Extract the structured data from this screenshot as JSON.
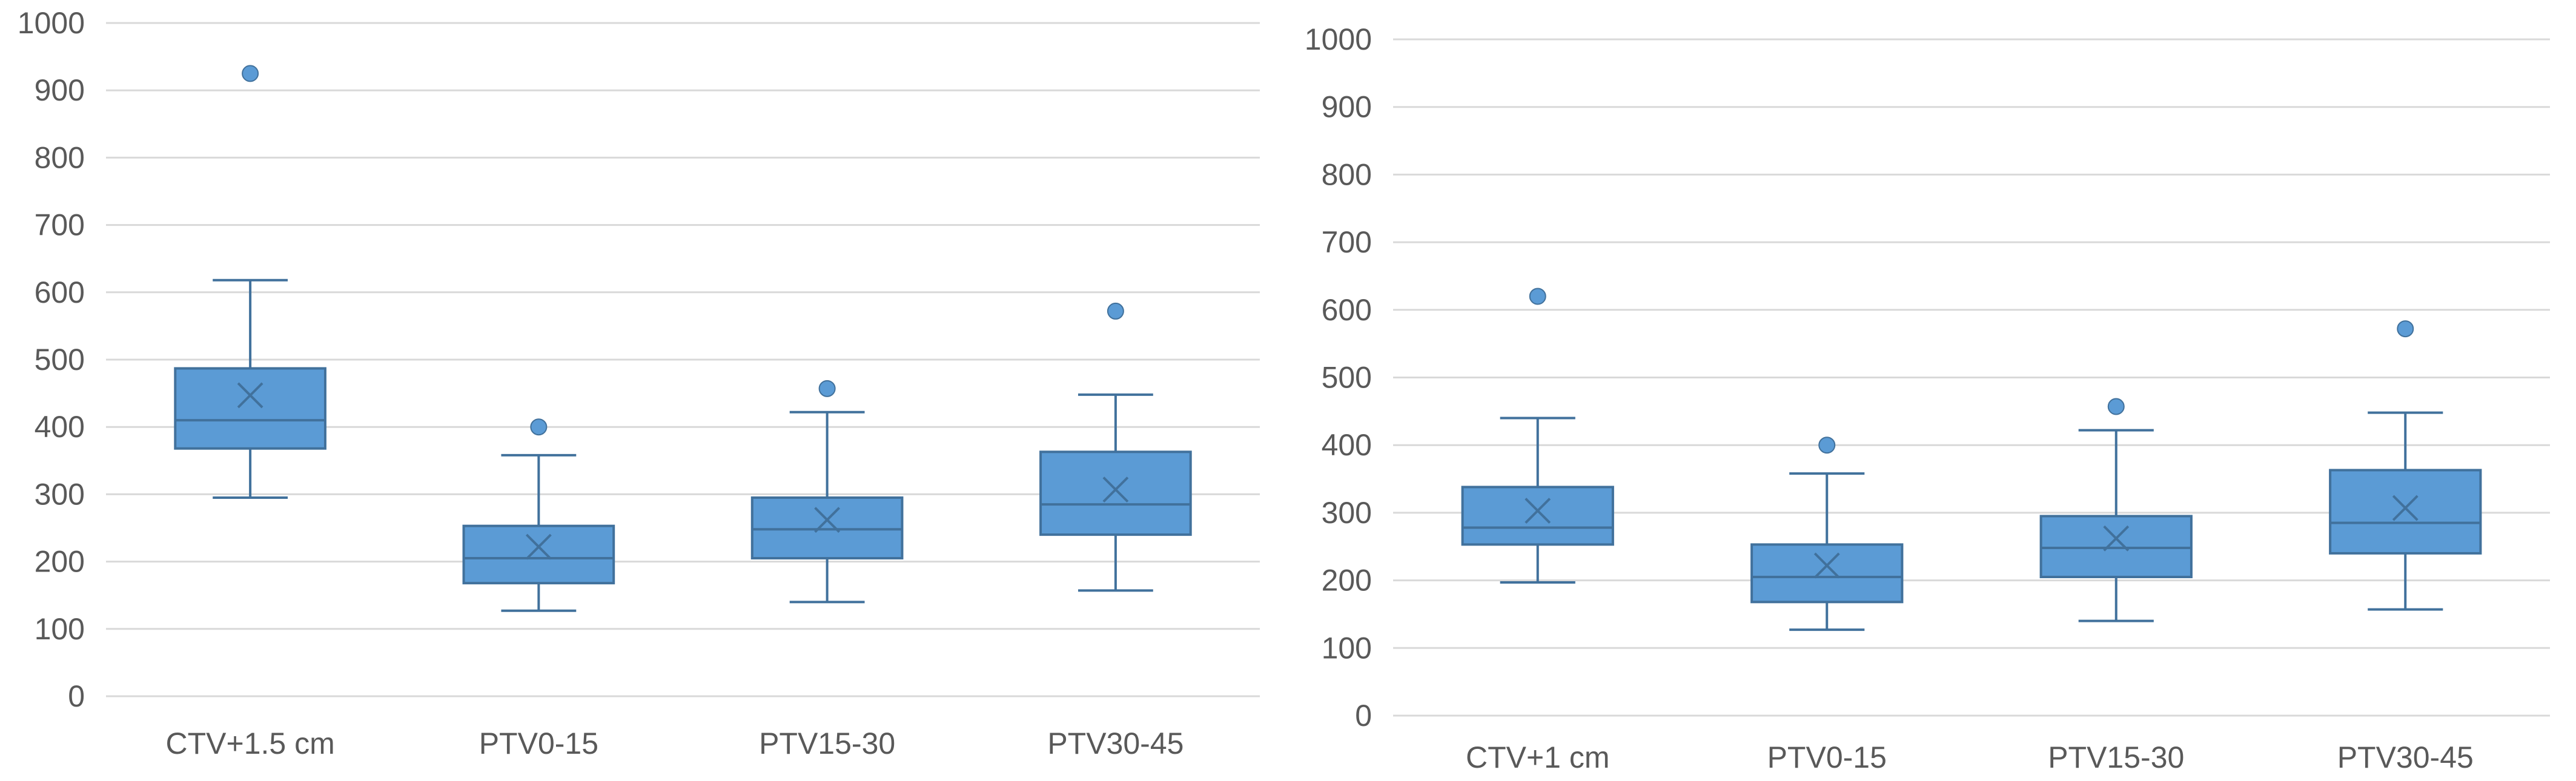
{
  "chart_data": [
    {
      "type": "box",
      "ylim": [
        0,
        1000
      ],
      "yticks": [
        0,
        100,
        200,
        300,
        400,
        500,
        600,
        700,
        800,
        900,
        1000
      ],
      "color": "#5B9BD5",
      "edge_color": "#41719C",
      "gridlines": true,
      "categories": [
        "CTV+1.5 cm",
        "PTV0-15",
        "PTV15-30",
        "PTV30-45"
      ],
      "boxes": [
        {
          "min": 295,
          "q1": 368,
          "median": 410,
          "q3": 487,
          "max": 618,
          "mean": 447,
          "outliers": [
            925
          ]
        },
        {
          "min": 127,
          "q1": 168,
          "median": 205,
          "q3": 253,
          "max": 358,
          "mean": 222,
          "outliers": [
            400
          ]
        },
        {
          "min": 140,
          "q1": 205,
          "median": 248,
          "q3": 295,
          "max": 422,
          "mean": 262,
          "outliers": [
            457
          ]
        },
        {
          "min": 157,
          "q1": 240,
          "median": 285,
          "q3": 363,
          "max": 448,
          "mean": 307,
          "outliers": [
            572
          ]
        }
      ]
    },
    {
      "type": "box",
      "ylim": [
        0,
        1000
      ],
      "yticks": [
        0,
        100,
        200,
        300,
        400,
        500,
        600,
        700,
        800,
        900,
        1000
      ],
      "color": "#5B9BD5",
      "edge_color": "#41719C",
      "gridlines": true,
      "categories": [
        "CTV+1 cm",
        "PTV0-15",
        "PTV15-30",
        "PTV30-45"
      ],
      "boxes": [
        {
          "min": 197,
          "q1": 253,
          "median": 278,
          "q3": 338,
          "max": 440,
          "mean": 303,
          "outliers": [
            620
          ]
        },
        {
          "min": 127,
          "q1": 168,
          "median": 205,
          "q3": 253,
          "max": 358,
          "mean": 222,
          "outliers": [
            400
          ]
        },
        {
          "min": 140,
          "q1": 205,
          "median": 248,
          "q3": 295,
          "max": 422,
          "mean": 262,
          "outliers": [
            457
          ]
        },
        {
          "min": 157,
          "q1": 240,
          "median": 285,
          "q3": 363,
          "max": 448,
          "mean": 307,
          "outliers": [
            572
          ]
        }
      ]
    }
  ]
}
